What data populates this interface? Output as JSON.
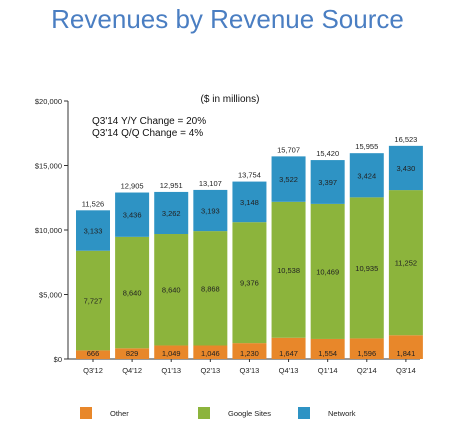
{
  "chart_data": {
    "type": "bar",
    "stacked": true,
    "title": "Revenues by Revenue Source",
    "subtitle": "($ in millions)",
    "annotations": [
      "Q3'14 Y/Y Change = 20%",
      "Q3'14 Q/Q Change = 4%"
    ],
    "categories": [
      "Q3'12",
      "Q4'12",
      "Q1'13",
      "Q2'13",
      "Q3'13",
      "Q4'13",
      "Q1'14",
      "Q2'14",
      "Q3'14"
    ],
    "series": [
      {
        "name": "Other",
        "values": [
          666,
          829,
          1049,
          1046,
          1230,
          1647,
          1554,
          1596,
          1841
        ],
        "labels": [
          "666",
          "829",
          "1,049",
          "1,046",
          "1,230",
          "1,647",
          "1,554",
          "1,596",
          "1,841"
        ],
        "color": "#e8872a"
      },
      {
        "name": "Google Sites",
        "values": [
          7727,
          8640,
          8640,
          8868,
          9376,
          10538,
          10469,
          10935,
          11252
        ],
        "labels": [
          "7,727",
          "8,640",
          "8,640",
          "8,868",
          "9,376",
          "10,538",
          "10,469",
          "10,935",
          "11,252"
        ],
        "color": "#8cb43c"
      },
      {
        "name": "Network",
        "values": [
          3133,
          3436,
          3262,
          3193,
          3148,
          3522,
          3397,
          3424,
          3430
        ],
        "labels": [
          "3,133",
          "3,436",
          "3,262",
          "3,193",
          "3,148",
          "3,522",
          "3,397",
          "3,424",
          "3,430"
        ],
        "color": "#2e93c4"
      }
    ],
    "totals": [
      11526,
      12905,
      12951,
      13107,
      13754,
      15707,
      15420,
      15955,
      16523
    ],
    "total_labels": [
      "11,526",
      "12,905",
      "12,951",
      "13,107",
      "13,754",
      "15,707",
      "15,420",
      "15,955",
      "16,523"
    ],
    "ylim": [
      0,
      20000
    ],
    "yticks": [
      0,
      5000,
      10000,
      15000,
      20000
    ],
    "ytick_labels": [
      "$0",
      "$5,000",
      "$10,000",
      "$15,000",
      "$20,000"
    ],
    "xlabel": "",
    "ylabel": "",
    "grid": false,
    "legend_position": "bottom"
  }
}
